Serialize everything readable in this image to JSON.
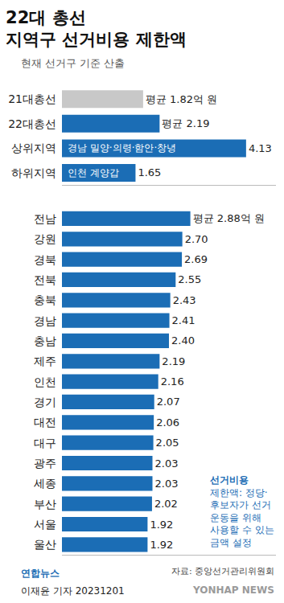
{
  "chart_data": [
    {
      "type": "bar",
      "title": "22대 총선\n지역구 선거비용 제한액",
      "subtitle": "현재 선거구 기준 산출",
      "orientation": "horizontal",
      "categories": [
        "21대총선",
        "22대총선",
        "상위지역",
        "하위지역"
      ],
      "values": [
        1.82,
        2.19,
        4.13,
        1.65
      ],
      "value_labels": [
        "평균 1.82억 원",
        "평균 2.19",
        "4.13",
        "1.65"
      ],
      "colors": [
        "#c8c8c8",
        "#1b6db5",
        "#1b6db5",
        "#1b6db5"
      ],
      "annotations": [
        {
          "category": "상위지역",
          "text": "경남 밀양·의령·함안·창녕"
        },
        {
          "category": "하위지역",
          "text": "인천 계양갑"
        }
      ],
      "xlim": [
        0,
        4.8
      ],
      "xticks": [],
      "grid": false,
      "data_labels": true,
      "tick_labels": "y"
    },
    {
      "type": "bar",
      "orientation": "horizontal",
      "categories": [
        "전남",
        "강원",
        "경북",
        "전북",
        "충북",
        "경남",
        "충남",
        "제주",
        "인천",
        "경기",
        "대전",
        "대구",
        "광주",
        "세종",
        "부산",
        "서울",
        "울산"
      ],
      "values": [
        2.88,
        2.7,
        2.69,
        2.55,
        2.43,
        2.41,
        2.4,
        2.19,
        2.16,
        2.07,
        2.06,
        2.05,
        2.03,
        2.03,
        2.02,
        1.92,
        1.92
      ],
      "value_labels": [
        "평균 2.88억 원",
        "2.70",
        "2.69",
        "2.55",
        "2.43",
        "2.41",
        "2.40",
        "2.19",
        "2.16",
        "2.07",
        "2.06",
        "2.05",
        "2.03",
        "2.03",
        "2.02",
        "1.92",
        "1.92"
      ],
      "color": "#1b6db5",
      "note_lines": [
        "선거비용",
        "제한액: 정당·",
        "후보자가 선거",
        "운동을 위해",
        "사용할 수 있는",
        "금액 설정"
      ],
      "xlim": [
        0,
        4.8
      ],
      "xticks": [],
      "grid": false,
      "data_labels": true,
      "tick_labels": "y"
    }
  ],
  "footer": {
    "source": "자료: 중앙선거관리위원회",
    "credit": "이재윤 기자 20231201",
    "logo": "연합뉴스",
    "watermark": "YONHAP NEWS"
  }
}
